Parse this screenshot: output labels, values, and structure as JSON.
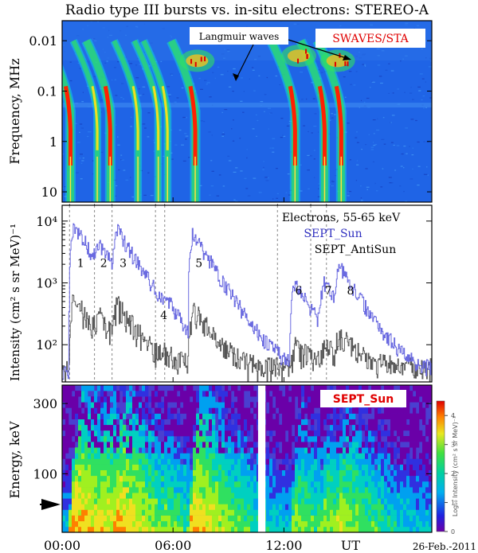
{
  "chart_data": {
    "type": "multi-panel",
    "title": "Radio type III bursts vs. in-situ electrons: STEREO-A",
    "x_axis": {
      "label": "UT",
      "range_hours": [
        0,
        20
      ],
      "tick_hours": [
        0,
        6,
        12
      ],
      "tick_labels": [
        "00:00",
        "06:00",
        "12:00"
      ],
      "date": "26-Feb.-2011"
    },
    "panels": [
      {
        "type": "heatmap",
        "name": "SWAVES/STA dynamic spectrum",
        "instrument": "SWAVES/STA",
        "ylabel": "Frequency, MHz",
        "yscale": "log",
        "ylim": [
          0.004,
          16
        ],
        "ytick_values": [
          0.01,
          0.1,
          1,
          10
        ],
        "ytick_labels": [
          "0.01",
          "0.1",
          "1",
          "10"
        ],
        "annotation": "Langmuir waves",
        "burst_times_hours": [
          0.45,
          1.9,
          2.6,
          4.1,
          5.2,
          5.7,
          7.2,
          12.6,
          14.2,
          15.1
        ],
        "arrow_marks_hours": [
          0.4,
          1.75,
          2.7,
          5.05,
          5.55,
          11.65,
          13.45,
          14.3
        ]
      },
      {
        "type": "line",
        "name": "Electron intensity time profiles",
        "ylabel": "Intensity (cm² s sr MeV)⁻¹",
        "yscale": "log",
        "ylim": [
          25,
          18000
        ],
        "ytick_values": [
          100,
          1000,
          10000
        ],
        "ytick_labels": [
          "10²",
          "10³",
          "10⁴"
        ],
        "energy_label": "Electrons, 55-65 keV",
        "series": [
          {
            "name": "SEPT_Sun",
            "color": "#6a6ae0"
          },
          {
            "name": "SEPT_AntiSun",
            "color": "#555555"
          }
        ],
        "events": [
          {
            "label": "1",
            "time_hours": 0.45,
            "peak": 9000
          },
          {
            "label": "2",
            "time_hours": 1.8,
            "peak": 2600
          },
          {
            "label": "3",
            "time_hours": 2.8,
            "peak": 5800
          },
          {
            "label": "4",
            "time_hours": 5.4,
            "peak": 180
          },
          {
            "label": "5",
            "time_hours": 6.9,
            "peak": 6200
          },
          {
            "label": "6",
            "time_hours": 12.4,
            "peak": 950
          },
          {
            "label": "7",
            "time_hours": 14.0,
            "peak": 850
          },
          {
            "label": "8",
            "time_hours": 14.8,
            "peak": 1500
          }
        ]
      },
      {
        "type": "heatmap",
        "name": "SEPT_Sun energy spectrogram",
        "instrument": "SEPT_Sun",
        "ylabel": "Energy, keV",
        "ylim_keV": [
          40,
          400
        ],
        "ytick_values": [
          100,
          300
        ],
        "ytick_labels": [
          "100",
          "300"
        ],
        "pointer_energy_keV": 60,
        "data_gap_hours": [
          10.6,
          11.0
        ],
        "colorbar": {
          "label": "Log₁₀ Intensity (cm² s sr MeV)⁻¹",
          "range": [
            0,
            4.5
          ],
          "tick_values": [
            0,
            1,
            2,
            3,
            4
          ],
          "tick_labels": [
            "0",
            "1",
            "2",
            "3",
            "4"
          ]
        }
      }
    ]
  }
}
